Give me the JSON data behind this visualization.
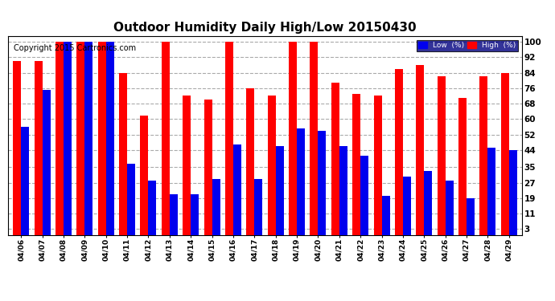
{
  "title": "Outdoor Humidity Daily High/Low 20150430",
  "copyright": "Copyright 2015 Cartronics.com",
  "dates": [
    "04/06",
    "04/07",
    "04/08",
    "04/09",
    "04/10",
    "04/11",
    "04/12",
    "04/13",
    "04/14",
    "04/15",
    "04/16",
    "04/17",
    "04/18",
    "04/19",
    "04/20",
    "04/21",
    "04/22",
    "04/23",
    "04/24",
    "04/25",
    "04/26",
    "04/27",
    "04/28",
    "04/29"
  ],
  "high_values": [
    90,
    90,
    100,
    100,
    100,
    84,
    62,
    100,
    72,
    70,
    100,
    76,
    72,
    100,
    100,
    79,
    73,
    72,
    86,
    88,
    82,
    71,
    82,
    84
  ],
  "low_values": [
    56,
    75,
    100,
    100,
    100,
    37,
    28,
    21,
    21,
    29,
    47,
    29,
    46,
    55,
    54,
    46,
    41,
    20,
    30,
    33,
    28,
    19,
    45,
    44
  ],
  "ylim": [
    0,
    103
  ],
  "yticks": [
    3,
    11,
    19,
    27,
    35,
    44,
    52,
    60,
    68,
    76,
    84,
    92,
    100
  ],
  "bar_width": 0.38,
  "high_color": "#ff0000",
  "low_color": "#0000ee",
  "bg_color": "#ffffff",
  "grid_color": "#aaaaaa",
  "title_fontsize": 11,
  "copyright_fontsize": 7,
  "legend_labels": [
    "Low  (%)",
    "High  (%)"
  ],
  "legend_colors": [
    "#0000ee",
    "#ff0000"
  ]
}
